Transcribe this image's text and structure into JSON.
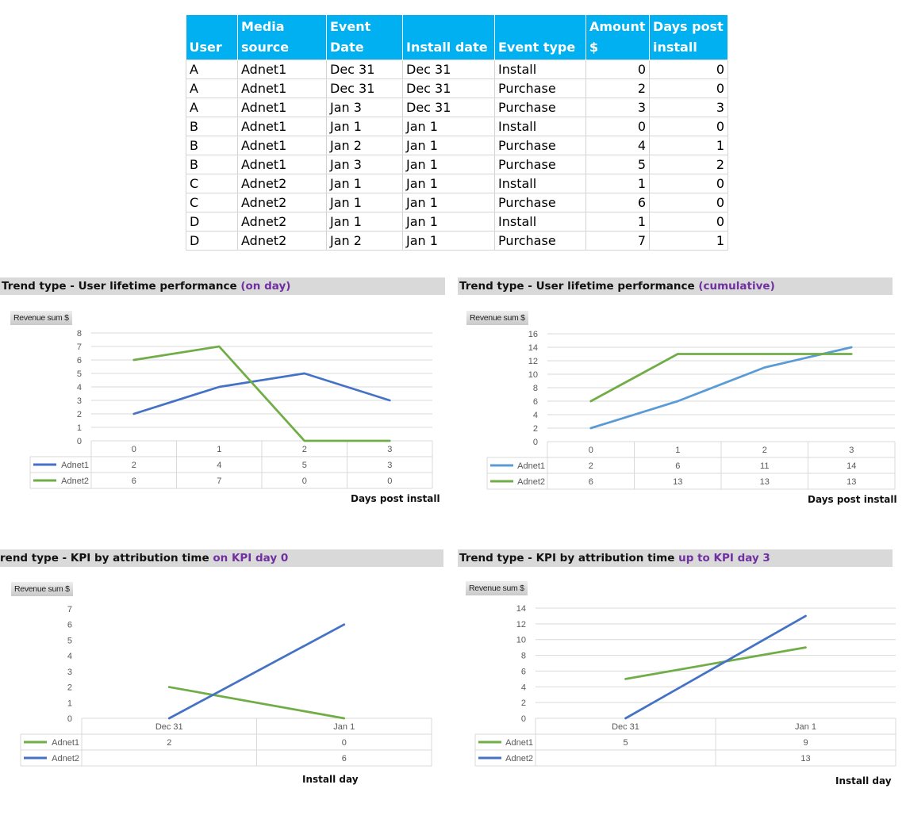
{
  "table": {
    "headers": [
      "User",
      "Media source",
      "Event Date",
      "Install date",
      "Event type",
      "Amount $",
      "Days post install"
    ],
    "header_lines": [
      [
        "",
        "User"
      ],
      [
        "Media",
        "source"
      ],
      [
        "Event",
        "Date"
      ],
      [
        "",
        "Install date"
      ],
      [
        "",
        "Event type"
      ],
      [
        "Amount",
        "$"
      ],
      [
        "Days post",
        "install"
      ]
    ],
    "header_color": "#00b0f0",
    "rows": [
      [
        "A",
        "Adnet1",
        "Dec 31",
        "Dec 31",
        "Install",
        "0",
        "0"
      ],
      [
        "A",
        "Adnet1",
        "Dec 31",
        "Dec 31",
        "Purchase",
        "2",
        "0"
      ],
      [
        "A",
        "Adnet1",
        "Jan 3",
        "Dec 31",
        "Purchase",
        "3",
        "3"
      ],
      [
        "B",
        "Adnet1",
        "Jan 1",
        "Jan 1",
        "Install",
        "0",
        "0"
      ],
      [
        "B",
        "Adnet1",
        "Jan 2",
        "Jan 1",
        "Purchase",
        "4",
        "1"
      ],
      [
        "B",
        "Adnet1",
        "Jan 3",
        "Jan 1",
        "Purchase",
        "5",
        "2"
      ],
      [
        "C",
        "Adnet2",
        "Jan 1",
        "Jan 1",
        "Install",
        "1",
        "0"
      ],
      [
        "C",
        "Adnet2",
        "Jan 1",
        "Jan 1",
        "Purchase",
        "6",
        "0"
      ],
      [
        "D",
        "Adnet2",
        "Jan 1",
        "Jan 1",
        "Install",
        "1",
        "0"
      ],
      [
        "D",
        "Adnet2",
        "Jan 2",
        "Jan 1",
        "Purchase",
        "7",
        "1"
      ]
    ]
  },
  "colors": {
    "highlight_purple": "#7030a0",
    "title_bar": "#d9d9d9",
    "series_blue": "#4472c4",
    "series_light_blue": "#5b9bd5",
    "series_green": "#70ad47"
  },
  "chart_data": [
    {
      "id": "lifetime-on-day",
      "type": "line",
      "title": "Trend type - User lifetime performance",
      "title_highlight": "(on day)",
      "ylabel": "Revenue sum $",
      "xlabel": "Days  post install",
      "categories": [
        "0",
        "1",
        "2",
        "3"
      ],
      "ylim": [
        0,
        8
      ],
      "yticks": [
        0,
        1,
        2,
        3,
        4,
        5,
        6,
        7,
        8
      ],
      "grid": true,
      "legend": "data-table-bottom",
      "series": [
        {
          "name": "Adnet1",
          "color": "#4472c4",
          "values": [
            2,
            4,
            5,
            3
          ]
        },
        {
          "name": "Adnet2",
          "color": "#70ad47",
          "values": [
            6,
            7,
            0,
            0
          ]
        }
      ]
    },
    {
      "id": "lifetime-cumulative",
      "type": "line",
      "title": "Trend type - User lifetime performance",
      "title_highlight": "(cumulative)",
      "ylabel": "Revenue sum $",
      "xlabel": "Days  post install",
      "categories": [
        "0",
        "1",
        "2",
        "3"
      ],
      "ylim": [
        0,
        16
      ],
      "yticks": [
        0,
        2,
        4,
        6,
        8,
        10,
        12,
        14,
        16
      ],
      "grid": true,
      "legend": "data-table-bottom",
      "series": [
        {
          "name": "Adnet1",
          "color": "#5b9bd5",
          "values": [
            2,
            6,
            11,
            14
          ]
        },
        {
          "name": "Adnet2",
          "color": "#70ad47",
          "values": [
            6,
            13,
            13,
            13
          ]
        }
      ]
    },
    {
      "id": "kpi-day0",
      "type": "line",
      "title": "rend type - KPI by attribution time",
      "title_highlight": "on KPI day 0",
      "ylabel": "Revenue sum $",
      "xlabel": "Install day",
      "categories": [
        "Dec 31",
        "Jan 1"
      ],
      "ylim": [
        0,
        7
      ],
      "yticks": [
        0,
        1,
        2,
        3,
        4,
        5,
        6,
        7
      ],
      "grid": false,
      "legend": "data-table-bottom",
      "series": [
        {
          "name": "Adnet1",
          "color": "#70ad47",
          "values": [
            2,
            0
          ],
          "labels": [
            "2",
            "0"
          ]
        },
        {
          "name": "Adnet2",
          "color": "#4472c4",
          "values": [
            0,
            6
          ],
          "labels": [
            "",
            "6"
          ]
        }
      ]
    },
    {
      "id": "kpi-day3",
      "type": "line",
      "title": "Trend type - KPI by attribution time",
      "title_highlight": "up to KPI day 3",
      "ylabel": "Revenue sum $",
      "xlabel": "Install day",
      "categories": [
        "Dec 31",
        "Jan 1"
      ],
      "ylim": [
        0,
        14
      ],
      "yticks": [
        0,
        2,
        4,
        6,
        8,
        10,
        12,
        14
      ],
      "grid": true,
      "legend": "data-table-bottom",
      "series": [
        {
          "name": "Adnet1",
          "color": "#70ad47",
          "values": [
            5,
            9
          ],
          "labels": [
            "5",
            "9"
          ]
        },
        {
          "name": "Adnet2",
          "color": "#4472c4",
          "values": [
            0,
            13
          ],
          "labels": [
            "",
            "13"
          ]
        }
      ]
    }
  ]
}
